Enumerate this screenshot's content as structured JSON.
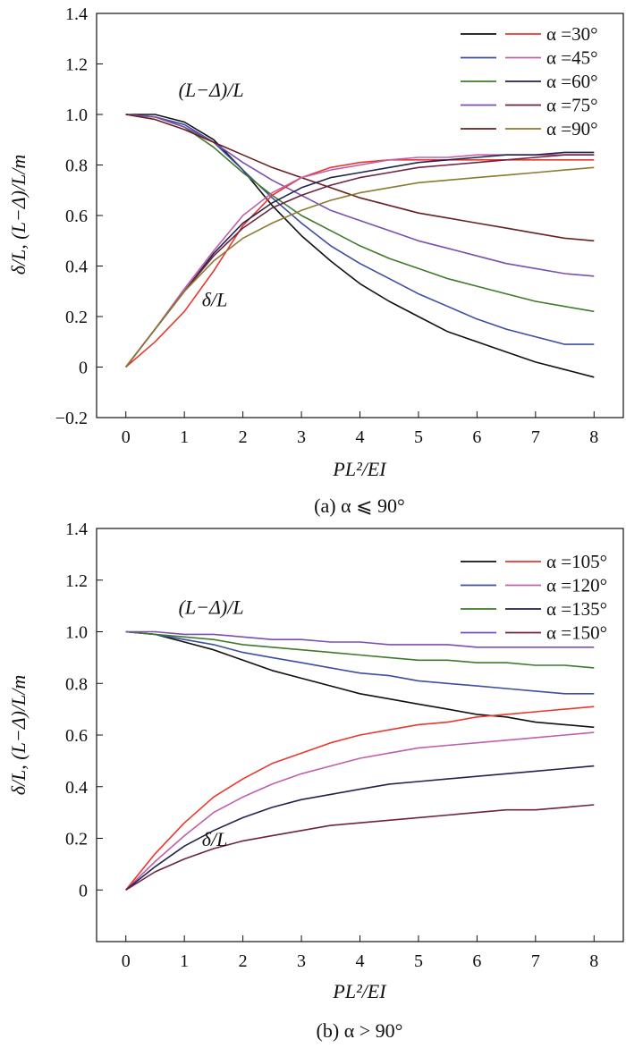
{
  "colors": {
    "black": "#111111",
    "red": "#e8382e",
    "blue": "#3d4ea2",
    "pink": "#c060a8",
    "green": "#3f7a2c",
    "navy": "#23234e",
    "purple": "#7b4fb0",
    "maroon": "#6e2440",
    "brown": "#6a2020",
    "olive": "#8b7a30"
  },
  "chart_data": [
    {
      "type": "line",
      "caption": "(a) α ⩽ 90°",
      "xlabel": "PL²/EI",
      "ylabel": "δ/L, (L−Δ)/L/m",
      "xlim": [
        -0.5,
        8.5
      ],
      "ylim": [
        -0.2,
        1.4
      ],
      "xticks": [
        "0",
        "1",
        "2",
        "3",
        "4",
        "5",
        "6",
        "7",
        "8"
      ],
      "yticks": [
        "−0.2",
        "0",
        "0.2",
        "0.4",
        "0.6",
        "0.8",
        "1.0",
        "1.2",
        "1.4"
      ],
      "annotations": [
        {
          "text": "(L−Δ)/L",
          "x": 0.9,
          "y": 1.07
        },
        {
          "text": "δ/L",
          "x": 1.3,
          "y": 0.24
        }
      ],
      "legend": [
        {
          "label": "α =30°",
          "colors": [
            "#111111",
            "#e8382e"
          ]
        },
        {
          "label": "α =45°",
          "colors": [
            "#3d4ea2",
            "#c060a8"
          ]
        },
        {
          "label": "α =60°",
          "colors": [
            "#3f7a2c",
            "#23234e"
          ]
        },
        {
          "label": "α =75°",
          "colors": [
            "#7b4fb0",
            "#6e2440"
          ]
        },
        {
          "label": "α =90°",
          "colors": [
            "#6a2020",
            "#8b7a30"
          ]
        }
      ],
      "x": [
        0,
        0.5,
        1,
        1.5,
        2,
        2.5,
        3,
        3.5,
        4,
        4.5,
        5,
        5.5,
        6,
        6.5,
        7,
        7.5,
        8
      ],
      "series": [
        {
          "name": "α =30° (L−Δ)/L",
          "color": "#111111",
          "values": [
            1.0,
            1.0,
            0.97,
            0.9,
            0.78,
            0.64,
            0.52,
            0.42,
            0.33,
            0.26,
            0.2,
            0.14,
            0.1,
            0.06,
            0.02,
            -0.01,
            -0.04
          ]
        },
        {
          "name": "α =45° (L−Δ)/L",
          "color": "#3d4ea2",
          "values": [
            1.0,
            0.99,
            0.96,
            0.89,
            0.78,
            0.67,
            0.57,
            0.48,
            0.41,
            0.35,
            0.29,
            0.24,
            0.19,
            0.15,
            0.12,
            0.09,
            0.09
          ]
        },
        {
          "name": "α =60° (L−Δ)/L",
          "color": "#3f7a2c",
          "values": [
            1.0,
            0.99,
            0.95,
            0.87,
            0.77,
            0.68,
            0.6,
            0.54,
            0.48,
            0.43,
            0.39,
            0.35,
            0.32,
            0.29,
            0.26,
            0.24,
            0.22
          ]
        },
        {
          "name": "α =75° (L−Δ)/L",
          "color": "#7b4fb0",
          "values": [
            1.0,
            0.99,
            0.95,
            0.89,
            0.81,
            0.74,
            0.68,
            0.62,
            0.58,
            0.54,
            0.5,
            0.47,
            0.44,
            0.41,
            0.39,
            0.37,
            0.36
          ]
        },
        {
          "name": "α =90° (L−Δ)/L",
          "color": "#6a2020",
          "values": [
            1.0,
            0.98,
            0.94,
            0.89,
            0.84,
            0.79,
            0.75,
            0.71,
            0.67,
            0.64,
            0.61,
            0.59,
            0.57,
            0.55,
            0.53,
            0.51,
            0.5
          ]
        },
        {
          "name": "α =30° δ/L",
          "color": "#e8382e",
          "values": [
            0.0,
            0.1,
            0.22,
            0.38,
            0.56,
            0.68,
            0.75,
            0.79,
            0.81,
            0.82,
            0.82,
            0.82,
            0.82,
            0.82,
            0.82,
            0.82,
            0.82
          ]
        },
        {
          "name": "α =45° δ/L",
          "color": "#c060a8",
          "values": [
            0.0,
            0.15,
            0.31,
            0.46,
            0.6,
            0.69,
            0.75,
            0.78,
            0.8,
            0.82,
            0.83,
            0.83,
            0.84,
            0.84,
            0.84,
            0.84,
            0.84
          ]
        },
        {
          "name": "α =60° δ/L",
          "color": "#23234e",
          "values": [
            0.0,
            0.15,
            0.3,
            0.45,
            0.57,
            0.65,
            0.71,
            0.75,
            0.77,
            0.79,
            0.81,
            0.82,
            0.83,
            0.84,
            0.84,
            0.85,
            0.85
          ]
        },
        {
          "name": "α =75° δ/L",
          "color": "#6e2440",
          "values": [
            0.0,
            0.15,
            0.3,
            0.44,
            0.55,
            0.63,
            0.68,
            0.72,
            0.75,
            0.77,
            0.79,
            0.8,
            0.81,
            0.82,
            0.83,
            0.84,
            0.84
          ]
        },
        {
          "name": "α =90° δ/L",
          "color": "#8b7a30",
          "values": [
            0.0,
            0.15,
            0.3,
            0.42,
            0.51,
            0.57,
            0.62,
            0.66,
            0.69,
            0.71,
            0.73,
            0.74,
            0.75,
            0.76,
            0.77,
            0.78,
            0.79
          ]
        }
      ]
    },
    {
      "type": "line",
      "caption": "(b) α > 90°",
      "xlabel": "PL²/EI",
      "ylabel": "δ/L, (L−Δ)/L/m",
      "xlim": [
        -0.5,
        8.5
      ],
      "ylim": [
        -0.2,
        1.4
      ],
      "xticks": [
        "0",
        "1",
        "2",
        "3",
        "4",
        "5",
        "6",
        "7",
        "8"
      ],
      "yticks": [
        "0",
        "0.2",
        "0.4",
        "0.6",
        "0.8",
        "1.0",
        "1.2",
        "1.4"
      ],
      "annotations": [
        {
          "text": "(L−Δ)/L",
          "x": 0.9,
          "y": 1.07
        },
        {
          "text": "δ/L",
          "x": 1.3,
          "y": 0.17
        }
      ],
      "legend": [
        {
          "label": "α =105°",
          "colors": [
            "#111111",
            "#e8382e"
          ]
        },
        {
          "label": "α =120°",
          "colors": [
            "#3d4ea2",
            "#c060a8"
          ]
        },
        {
          "label": "α =135°",
          "colors": [
            "#3f7a2c",
            "#23234e"
          ]
        },
        {
          "label": "α =150°",
          "colors": [
            "#7b4fb0",
            "#6e2440"
          ]
        }
      ],
      "x": [
        0,
        0.5,
        1,
        1.5,
        2,
        2.5,
        3,
        3.5,
        4,
        4.5,
        5,
        5.5,
        6,
        6.5,
        7,
        7.5,
        8
      ],
      "series": [
        {
          "name": "α =105° (L−Δ)/L",
          "color": "#111111",
          "values": [
            1.0,
            0.99,
            0.96,
            0.93,
            0.89,
            0.85,
            0.82,
            0.79,
            0.76,
            0.74,
            0.72,
            0.7,
            0.68,
            0.67,
            0.65,
            0.64,
            0.63
          ]
        },
        {
          "name": "α =120° (L−Δ)/L",
          "color": "#3d4ea2",
          "values": [
            1.0,
            0.99,
            0.97,
            0.95,
            0.92,
            0.9,
            0.88,
            0.86,
            0.84,
            0.83,
            0.81,
            0.8,
            0.79,
            0.78,
            0.77,
            0.76,
            0.76
          ]
        },
        {
          "name": "α =135° (L−Δ)/L",
          "color": "#3f7a2c",
          "values": [
            1.0,
            0.99,
            0.98,
            0.97,
            0.95,
            0.94,
            0.93,
            0.92,
            0.91,
            0.9,
            0.89,
            0.89,
            0.88,
            0.88,
            0.87,
            0.87,
            0.86
          ]
        },
        {
          "name": "α =150° (L−Δ)/L",
          "color": "#7b4fb0",
          "values": [
            1.0,
            1.0,
            0.99,
            0.99,
            0.98,
            0.97,
            0.97,
            0.96,
            0.96,
            0.95,
            0.95,
            0.95,
            0.94,
            0.94,
            0.94,
            0.94,
            0.94
          ]
        },
        {
          "name": "α =105° δ/L",
          "color": "#e8382e",
          "values": [
            0.0,
            0.14,
            0.26,
            0.36,
            0.43,
            0.49,
            0.53,
            0.57,
            0.6,
            0.62,
            0.64,
            0.65,
            0.67,
            0.68,
            0.69,
            0.7,
            0.71
          ]
        },
        {
          "name": "α =120° δ/L",
          "color": "#c060a8",
          "values": [
            0.0,
            0.11,
            0.21,
            0.3,
            0.36,
            0.41,
            0.45,
            0.48,
            0.51,
            0.53,
            0.55,
            0.56,
            0.57,
            0.58,
            0.59,
            0.6,
            0.61
          ]
        },
        {
          "name": "α =135° δ/L",
          "color": "#23234e",
          "values": [
            0.0,
            0.09,
            0.17,
            0.23,
            0.28,
            0.32,
            0.35,
            0.37,
            0.39,
            0.41,
            0.42,
            0.43,
            0.44,
            0.45,
            0.46,
            0.47,
            0.48
          ]
        },
        {
          "name": "α =150° δ/L",
          "color": "#6e2440",
          "values": [
            0.0,
            0.07,
            0.12,
            0.16,
            0.19,
            0.21,
            0.23,
            0.25,
            0.26,
            0.27,
            0.28,
            0.29,
            0.3,
            0.31,
            0.31,
            0.32,
            0.33
          ]
        }
      ]
    }
  ]
}
